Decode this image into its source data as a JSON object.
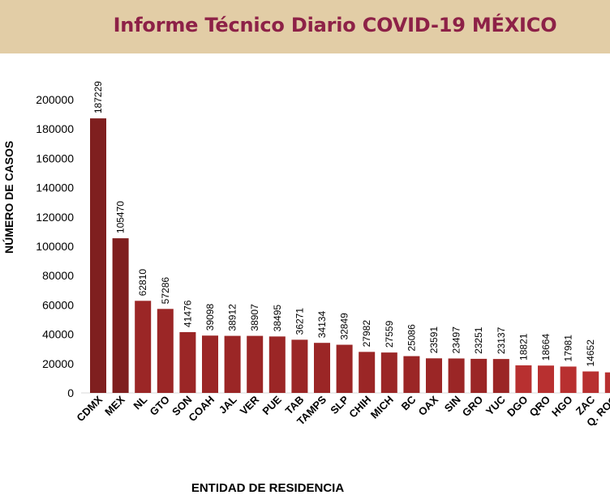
{
  "header": {
    "title": "Informe Técnico Diario COVID-19 MÉXICO"
  },
  "chart_data": {
    "type": "bar",
    "categories": [
      "CDMX",
      "MEX",
      "NL",
      "GTO",
      "SON",
      "COAH",
      "JAL",
      "VER",
      "PUE",
      "TAB",
      "TAMPS",
      "SLP",
      "CHIH",
      "MICH",
      "BC",
      "OAX",
      "SIN",
      "GRO",
      "YUC",
      "DGO",
      "QRO",
      "HGO",
      "ZAC",
      "Q. ROO"
    ],
    "values": [
      187229,
      105470,
      62810,
      57286,
      41476,
      39098,
      38912,
      38907,
      38495,
      36271,
      34134,
      32849,
      27982,
      27559,
      25086,
      23591,
      23497,
      23251,
      23137,
      18821,
      18664,
      17981,
      14652,
      14000
    ],
    "data_labels": [
      "187229",
      "105470",
      "62810",
      "57286",
      "41476",
      "39098",
      "38912",
      "38907",
      "38495",
      "36271",
      "34134",
      "32849",
      "27982",
      "27559",
      "25086",
      "23591",
      "23497",
      "23251",
      "23137",
      "18821",
      "18664",
      "17981",
      "14652",
      ""
    ],
    "ylabel": "NÚMERO DE CASOS",
    "xlabel": "ENTIDAD DE RESIDENCIA",
    "ylim": [
      0,
      200000
    ],
    "yticks": [
      0,
      20000,
      40000,
      60000,
      80000,
      100000,
      120000,
      140000,
      160000,
      180000,
      200000
    ],
    "grid": false,
    "colors": {
      "dark": "#7f1f1f",
      "mid": "#9b2626",
      "light": "#b83030"
    }
  }
}
